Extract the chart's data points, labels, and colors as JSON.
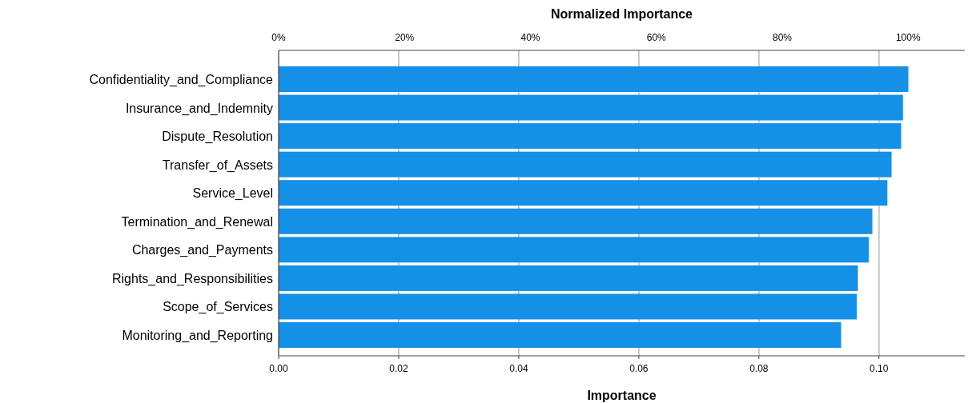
{
  "chart_data": {
    "type": "bar",
    "orientation": "horizontal",
    "title": "Normalized Importance",
    "xlabel": "Importance",
    "categories": [
      "Confidentiality_and_Compliance",
      "Insurance_and_Indemnity",
      "Dispute_Resolution",
      "Transfer_of_Assets",
      "Service_Level",
      "Termination_and_Renewal",
      "Charges_and_Payments",
      "Rights_and_Responsibilities",
      "Scope_of_Services",
      "Monitoring_and_Reporting"
    ],
    "values": [
      0.1049,
      0.104,
      0.1037,
      0.1021,
      0.1014,
      0.0989,
      0.0983,
      0.0965,
      0.0963,
      0.0937
    ],
    "color": "#1490e6",
    "xlim": [
      0,
      0.1143
    ],
    "xticks": [
      {
        "value": 0,
        "label": "0.00"
      },
      {
        "value": 0.02,
        "label": "0.02"
      },
      {
        "value": 0.04,
        "label": "0.04"
      },
      {
        "value": 0.06,
        "label": "0.06"
      },
      {
        "value": 0.08,
        "label": "0.08"
      },
      {
        "value": 0.1,
        "label": "0.10"
      }
    ],
    "x2lim": [
      0,
      109
    ],
    "x2ticks": [
      {
        "value": 0,
        "label": "0%"
      },
      {
        "value": 20,
        "label": "20%"
      },
      {
        "value": 40,
        "label": "40%"
      },
      {
        "value": 60,
        "label": "60%"
      },
      {
        "value": 80,
        "label": "80%"
      },
      {
        "value": 100,
        "label": "100%"
      }
    ],
    "grid": "x"
  }
}
